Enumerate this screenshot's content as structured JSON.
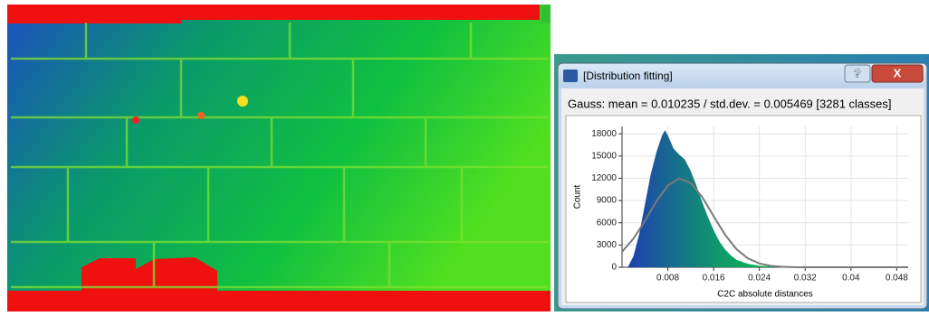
{
  "window": {
    "title": "[Distribution fitting]",
    "help_button": "?",
    "close_button": "X"
  },
  "heading": "Gauss: mean = 0.010235 / std.dev. = 0.005469 [3281 classes]",
  "chart_data": {
    "type": "area",
    "xlabel": "C2C absolute distances",
    "ylabel": "Count",
    "xlim": [
      0,
      0.05
    ],
    "ylim": [
      0,
      19000
    ],
    "xticks": [
      0.008,
      0.016,
      0.024,
      0.032,
      0.04,
      0.048
    ],
    "yticks": [
      0,
      3000,
      6000,
      9000,
      12000,
      15000,
      18000
    ],
    "grid": true,
    "series": [
      {
        "kind": "histogram",
        "colors": [
          "#1f3fb0",
          "#0f9a6a",
          "#00d040",
          "#6cff10"
        ],
        "x": [
          0.001,
          0.002,
          0.003,
          0.004,
          0.005,
          0.006,
          0.007,
          0.0075,
          0.008,
          0.009,
          0.01,
          0.011,
          0.012,
          0.013,
          0.014,
          0.015,
          0.016,
          0.017,
          0.018,
          0.019,
          0.02,
          0.022,
          0.024,
          0.028,
          0.032,
          0.04,
          0.049
        ],
        "values": [
          0,
          1500,
          4500,
          8500,
          12500,
          15500,
          17800,
          18500,
          17800,
          16000,
          15200,
          14500,
          13000,
          11000,
          8800,
          6800,
          5000,
          3500,
          2400,
          1600,
          1000,
          450,
          200,
          60,
          20,
          5,
          0
        ]
      },
      {
        "kind": "gauss",
        "color": "#7a7a7a",
        "x": [
          0,
          0.002,
          0.004,
          0.006,
          0.008,
          0.01,
          0.012,
          0.014,
          0.016,
          0.018,
          0.02,
          0.022,
          0.024,
          0.026,
          0.028,
          0.03,
          0.034,
          0.05
        ],
        "values": [
          2083,
          3862,
          6264,
          8892,
          11040,
          11990,
          11390,
          9470,
          6890,
          4380,
          2440,
          1190,
          506,
          188,
          61,
          18,
          0,
          0
        ]
      }
    ]
  }
}
